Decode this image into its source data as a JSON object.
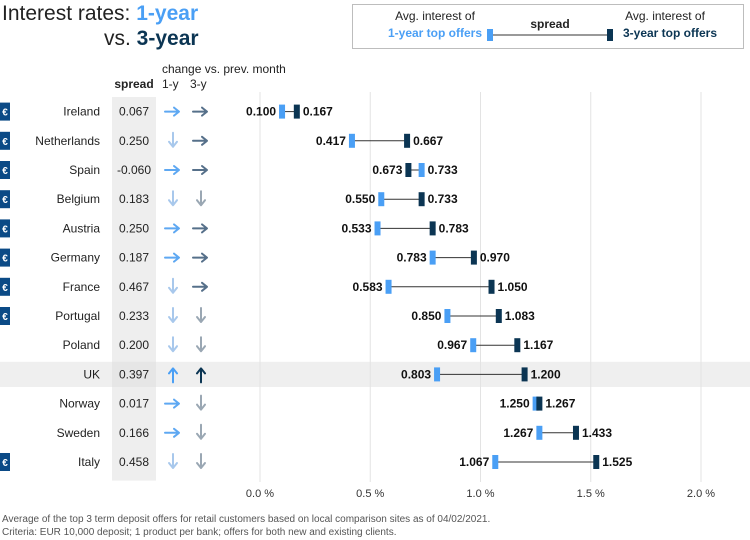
{
  "title": {
    "prefix": "Interest rates: ",
    "one": "1-year",
    "vs": "vs. ",
    "three": "3-year"
  },
  "legend": {
    "left_top": "Avg. interest of",
    "left_bottom": "1-year top offers",
    "middle": "spread",
    "right_top": "Avg. interest of",
    "right_bottom": "3-year top offers"
  },
  "columns": {
    "spread": "spread",
    "change": "change vs. prev. month",
    "one_y": "1-y",
    "three_y": "3-y"
  },
  "euro_symbol": "€",
  "colors": {
    "one_year": "#4a9ff5",
    "three_year": "#0b3553",
    "arrow_light": "#a8c8ec",
    "arrow_mid": "#9aa7b3",
    "arrow_one_right": "#5ea8f2",
    "arrow_three_right": "#56708a",
    "highlight_row": "#efefef",
    "euro_badge": "#0b4a86"
  },
  "chart_data": {
    "type": "dumbbell",
    "xlim": [
      0,
      2.1
    ],
    "x_ticks": [
      0,
      0.5,
      1.0,
      1.5,
      2.0
    ],
    "x_tick_labels": [
      "0.0 %",
      "0.5 %",
      "1.0 %",
      "1.5 %",
      "2.0 %"
    ],
    "grid": true,
    "rows": [
      {
        "country": "Ireland",
        "euro": true,
        "spread": "0.067",
        "one_year": 0.1,
        "three_year": 0.167,
        "one_label": "0.100",
        "three_label": "0.167",
        "change_one": "right",
        "change_three": "right",
        "highlight": false
      },
      {
        "country": "Netherlands",
        "euro": true,
        "spread": "0.250",
        "one_year": 0.417,
        "three_year": 0.667,
        "one_label": "0.417",
        "three_label": "0.667",
        "change_one": "down",
        "change_three": "right",
        "highlight": false
      },
      {
        "country": "Spain",
        "euro": true,
        "spread": "-0.060",
        "one_year": 0.733,
        "three_year": 0.673,
        "one_label": "0.733",
        "three_label": "0.673",
        "change_one": "right",
        "change_three": "right",
        "highlight": false
      },
      {
        "country": "Belgium",
        "euro": true,
        "spread": "0.183",
        "one_year": 0.55,
        "three_year": 0.733,
        "one_label": "0.550",
        "three_label": "0.733",
        "change_one": "down",
        "change_three": "down",
        "highlight": false
      },
      {
        "country": "Austria",
        "euro": true,
        "spread": "0.250",
        "one_year": 0.533,
        "three_year": 0.783,
        "one_label": "0.533",
        "three_label": "0.783",
        "change_one": "right",
        "change_three": "right",
        "highlight": false
      },
      {
        "country": "Germany",
        "euro": true,
        "spread": "0.187",
        "one_year": 0.783,
        "three_year": 0.97,
        "one_label": "0.783",
        "three_label": "0.970",
        "change_one": "right",
        "change_three": "right",
        "highlight": false
      },
      {
        "country": "France",
        "euro": true,
        "spread": "0.467",
        "one_year": 0.583,
        "three_year": 1.05,
        "one_label": "0.583",
        "three_label": "1.050",
        "change_one": "down",
        "change_three": "right",
        "highlight": false
      },
      {
        "country": "Portugal",
        "euro": true,
        "spread": "0.233",
        "one_year": 0.85,
        "three_year": 1.083,
        "one_label": "0.850",
        "three_label": "1.083",
        "change_one": "down",
        "change_three": "down",
        "highlight": false
      },
      {
        "country": "Poland",
        "euro": false,
        "spread": "0.200",
        "one_year": 0.967,
        "three_year": 1.167,
        "one_label": "0.967",
        "three_label": "1.167",
        "change_one": "down",
        "change_three": "down",
        "highlight": false
      },
      {
        "country": "UK",
        "euro": false,
        "spread": "0.397",
        "one_year": 0.803,
        "three_year": 1.2,
        "one_label": "0.803",
        "three_label": "1.200",
        "change_one": "up",
        "change_three": "up",
        "highlight": true
      },
      {
        "country": "Norway",
        "euro": false,
        "spread": "0.017",
        "one_year": 1.25,
        "three_year": 1.267,
        "one_label": "1.250",
        "three_label": "1.267",
        "change_one": "right",
        "change_three": "down",
        "highlight": false
      },
      {
        "country": "Sweden",
        "euro": false,
        "spread": "0.166",
        "one_year": 1.267,
        "three_year": 1.433,
        "one_label": "1.267",
        "three_label": "1.433",
        "change_one": "right",
        "change_three": "down",
        "highlight": false
      },
      {
        "country": "Italy",
        "euro": true,
        "spread": "0.458",
        "one_year": 1.067,
        "three_year": 1.525,
        "one_label": "1.067",
        "three_label": "1.525",
        "change_one": "down",
        "change_three": "down",
        "highlight": false
      }
    ]
  },
  "footnote": {
    "line1": "Average of the top 3 term deposit offers for retail customers based on local comparison sites as of 04/02/2021.",
    "line2": "Criteria: EUR 10,000 deposit; 1 product per bank; offers for both new and existing clients."
  }
}
